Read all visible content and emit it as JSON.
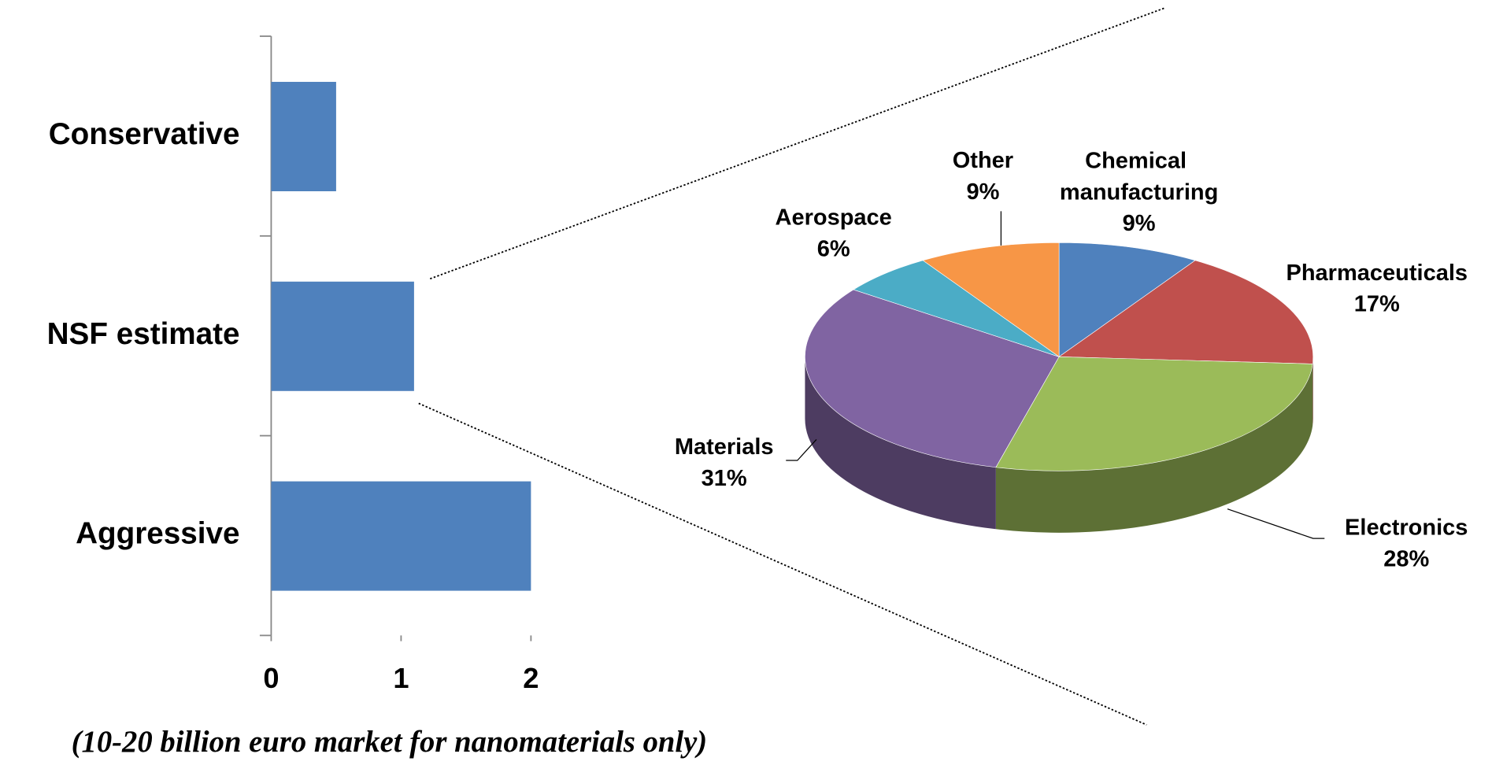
{
  "chart_data": [
    {
      "type": "bar",
      "orientation": "horizontal",
      "categories": [
        "Conservative",
        "NSF estimate",
        "Aggressive"
      ],
      "values": [
        0.5,
        1.1,
        2
      ],
      "color": "#4f81bd",
      "xlim": [
        0,
        2
      ],
      "xticks": [
        0,
        1,
        2
      ],
      "annotation": "(10-20 billion euro market for nanomaterials only)"
    },
    {
      "type": "pie",
      "style": "3d",
      "categories": [
        "Chemical manufacturing",
        "Pharmaceuticals",
        "Electronics",
        "Materials",
        "Aerospace",
        "Other"
      ],
      "values": [
        9,
        17,
        28,
        31,
        6,
        9
      ],
      "value_labels": [
        "9%",
        "17%",
        "28%",
        "31%",
        "6%",
        "9%"
      ],
      "colors": [
        "#4f81bd",
        "#c0504d",
        "#9bbb59",
        "#8064a2",
        "#4bacc6",
        "#f79646"
      ]
    }
  ]
}
